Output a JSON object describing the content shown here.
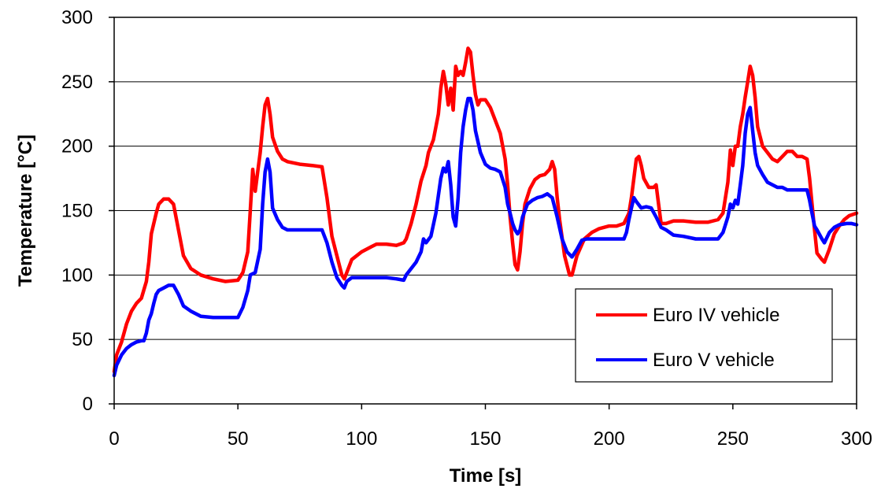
{
  "chart_data": {
    "type": "line",
    "title": "",
    "xlabel": "Time [s]",
    "ylabel": "Temperature [°C]",
    "xlim": [
      0,
      300
    ],
    "ylim": [
      0,
      300
    ],
    "x_ticks": [
      "0",
      "50",
      "100",
      "150",
      "200",
      "250",
      "300"
    ],
    "y_ticks": [
      "0",
      "50",
      "100",
      "150",
      "200",
      "250",
      "300"
    ],
    "grid": "horizontal",
    "legend_position": "bottom-right",
    "series": [
      {
        "name": "Euro IV vehicle",
        "color": "#ff0000",
        "points": [
          [
            0,
            25
          ],
          [
            1,
            38
          ],
          [
            3,
            48
          ],
          [
            5,
            62
          ],
          [
            7,
            72
          ],
          [
            9,
            78
          ],
          [
            11,
            82
          ],
          [
            13,
            95
          ],
          [
            14,
            110
          ],
          [
            15,
            132
          ],
          [
            17,
            148
          ],
          [
            18,
            155
          ],
          [
            20,
            159
          ],
          [
            22,
            159
          ],
          [
            24,
            155
          ],
          [
            26,
            135
          ],
          [
            28,
            115
          ],
          [
            31,
            105
          ],
          [
            35,
            100
          ],
          [
            40,
            97
          ],
          [
            45,
            95
          ],
          [
            50,
            96
          ],
          [
            52,
            102
          ],
          [
            54,
            118
          ],
          [
            55,
            150
          ],
          [
            56,
            182
          ],
          [
            57,
            165
          ],
          [
            58,
            180
          ],
          [
            59,
            195
          ],
          [
            60,
            215
          ],
          [
            61,
            232
          ],
          [
            62,
            237
          ],
          [
            63,
            225
          ],
          [
            64,
            207
          ],
          [
            66,
            196
          ],
          [
            68,
            190
          ],
          [
            70,
            188
          ],
          [
            75,
            186
          ],
          [
            80,
            185
          ],
          [
            84,
            184
          ],
          [
            86,
            160
          ],
          [
            88,
            130
          ],
          [
            90,
            115
          ],
          [
            92,
            100
          ],
          [
            93,
            97
          ],
          [
            94,
            102
          ],
          [
            96,
            112
          ],
          [
            100,
            118
          ],
          [
            104,
            122
          ],
          [
            106,
            124
          ],
          [
            110,
            124
          ],
          [
            114,
            123
          ],
          [
            117,
            125
          ],
          [
            118,
            128
          ],
          [
            120,
            140
          ],
          [
            122,
            155
          ],
          [
            124,
            173
          ],
          [
            126,
            185
          ],
          [
            127,
            195
          ],
          [
            129,
            205
          ],
          [
            131,
            225
          ],
          [
            132,
            245
          ],
          [
            133,
            258
          ],
          [
            134,
            248
          ],
          [
            135,
            232
          ],
          [
            136,
            245
          ],
          [
            137,
            228
          ],
          [
            138,
            262
          ],
          [
            139,
            255
          ],
          [
            140,
            258
          ],
          [
            141,
            255
          ],
          [
            142,
            265
          ],
          [
            143,
            276
          ],
          [
            144,
            273
          ],
          [
            145,
            255
          ],
          [
            146,
            240
          ],
          [
            147,
            232
          ],
          [
            148,
            236
          ],
          [
            150,
            236
          ],
          [
            152,
            230
          ],
          [
            154,
            220
          ],
          [
            156,
            210
          ],
          [
            158,
            190
          ],
          [
            159,
            170
          ],
          [
            160,
            145
          ],
          [
            161,
            125
          ],
          [
            162,
            108
          ],
          [
            163,
            104
          ],
          [
            164,
            118
          ],
          [
            165,
            140
          ],
          [
            166,
            155
          ],
          [
            168,
            167
          ],
          [
            170,
            174
          ],
          [
            172,
            177
          ],
          [
            174,
            178
          ],
          [
            176,
            182
          ],
          [
            177,
            188
          ],
          [
            178,
            182
          ],
          [
            179,
            160
          ],
          [
            180,
            143
          ],
          [
            182,
            115
          ],
          [
            184,
            100
          ],
          [
            185,
            100
          ],
          [
            187,
            115
          ],
          [
            190,
            128
          ],
          [
            193,
            133
          ],
          [
            196,
            136
          ],
          [
            200,
            138
          ],
          [
            203,
            138
          ],
          [
            206,
            140
          ],
          [
            208,
            148
          ],
          [
            209,
            160
          ],
          [
            210,
            175
          ],
          [
            211,
            190
          ],
          [
            212,
            192
          ],
          [
            213,
            185
          ],
          [
            214,
            175
          ],
          [
            216,
            168
          ],
          [
            218,
            168
          ],
          [
            219,
            170
          ],
          [
            220,
            155
          ],
          [
            221,
            140
          ],
          [
            223,
            140
          ],
          [
            226,
            142
          ],
          [
            230,
            142
          ],
          [
            235,
            141
          ],
          [
            240,
            141
          ],
          [
            244,
            143
          ],
          [
            246,
            148
          ],
          [
            248,
            172
          ],
          [
            249,
            197
          ],
          [
            250,
            185
          ],
          [
            251,
            200
          ],
          [
            252,
            200
          ],
          [
            253,
            215
          ],
          [
            254,
            225
          ],
          [
            255,
            238
          ],
          [
            256,
            250
          ],
          [
            257,
            262
          ],
          [
            258,
            255
          ],
          [
            259,
            238
          ],
          [
            260,
            215
          ],
          [
            262,
            200
          ],
          [
            264,
            195
          ],
          [
            266,
            190
          ],
          [
            268,
            188
          ],
          [
            270,
            192
          ],
          [
            272,
            196
          ],
          [
            274,
            196
          ],
          [
            276,
            192
          ],
          [
            278,
            192
          ],
          [
            280,
            190
          ],
          [
            281,
            175
          ],
          [
            282,
            155
          ],
          [
            283,
            135
          ],
          [
            284,
            117
          ],
          [
            286,
            112
          ],
          [
            287,
            110
          ],
          [
            289,
            120
          ],
          [
            291,
            132
          ],
          [
            293,
            138
          ],
          [
            295,
            143
          ],
          [
            297,
            146
          ],
          [
            300,
            148
          ]
        ]
      },
      {
        "name": "Euro V vehicle",
        "color": "#0000ff",
        "points": [
          [
            0,
            22
          ],
          [
            1,
            30
          ],
          [
            3,
            38
          ],
          [
            5,
            43
          ],
          [
            7,
            46
          ],
          [
            9,
            48
          ],
          [
            11,
            49
          ],
          [
            12,
            49
          ],
          [
            13,
            55
          ],
          [
            14,
            65
          ],
          [
            15,
            70
          ],
          [
            16,
            78
          ],
          [
            17,
            85
          ],
          [
            18,
            88
          ],
          [
            20,
            90
          ],
          [
            22,
            92
          ],
          [
            24,
            92
          ],
          [
            26,
            85
          ],
          [
            28,
            76
          ],
          [
            31,
            72
          ],
          [
            35,
            68
          ],
          [
            40,
            67
          ],
          [
            45,
            67
          ],
          [
            50,
            67
          ],
          [
            52,
            75
          ],
          [
            54,
            88
          ],
          [
            55,
            100
          ],
          [
            57,
            102
          ],
          [
            59,
            120
          ],
          [
            60,
            155
          ],
          [
            61,
            180
          ],
          [
            62,
            190
          ],
          [
            63,
            180
          ],
          [
            64,
            152
          ],
          [
            66,
            143
          ],
          [
            68,
            137
          ],
          [
            70,
            135
          ],
          [
            75,
            135
          ],
          [
            80,
            135
          ],
          [
            84,
            135
          ],
          [
            86,
            125
          ],
          [
            88,
            110
          ],
          [
            90,
            98
          ],
          [
            92,
            92
          ],
          [
            93,
            90
          ],
          [
            94,
            95
          ],
          [
            96,
            98
          ],
          [
            100,
            98
          ],
          [
            105,
            98
          ],
          [
            110,
            98
          ],
          [
            114,
            97
          ],
          [
            117,
            96
          ],
          [
            118,
            100
          ],
          [
            120,
            105
          ],
          [
            122,
            110
          ],
          [
            124,
            118
          ],
          [
            125,
            128
          ],
          [
            126,
            125
          ],
          [
            128,
            130
          ],
          [
            130,
            148
          ],
          [
            132,
            175
          ],
          [
            133,
            183
          ],
          [
            134,
            180
          ],
          [
            135,
            188
          ],
          [
            136,
            170
          ],
          [
            137,
            145
          ],
          [
            138,
            138
          ],
          [
            139,
            160
          ],
          [
            140,
            195
          ],
          [
            141,
            215
          ],
          [
            142,
            228
          ],
          [
            143,
            237
          ],
          [
            144,
            237
          ],
          [
            145,
            228
          ],
          [
            146,
            212
          ],
          [
            148,
            195
          ],
          [
            150,
            186
          ],
          [
            152,
            183
          ],
          [
            154,
            182
          ],
          [
            156,
            180
          ],
          [
            158,
            168
          ],
          [
            159,
            155
          ],
          [
            160,
            148
          ],
          [
            161,
            140
          ],
          [
            162,
            135
          ],
          [
            163,
            132
          ],
          [
            164,
            135
          ],
          [
            165,
            145
          ],
          [
            167,
            155
          ],
          [
            169,
            158
          ],
          [
            171,
            160
          ],
          [
            173,
            161
          ],
          [
            175,
            163
          ],
          [
            177,
            160
          ],
          [
            179,
            145
          ],
          [
            181,
            128
          ],
          [
            183,
            118
          ],
          [
            185,
            114
          ],
          [
            187,
            120
          ],
          [
            189,
            127
          ],
          [
            191,
            128
          ],
          [
            196,
            128
          ],
          [
            200,
            128
          ],
          [
            204,
            128
          ],
          [
            206,
            128
          ],
          [
            207,
            133
          ],
          [
            208,
            143
          ],
          [
            209,
            152
          ],
          [
            210,
            160
          ],
          [
            211,
            157
          ],
          [
            213,
            152
          ],
          [
            215,
            153
          ],
          [
            217,
            152
          ],
          [
            219,
            145
          ],
          [
            221,
            137
          ],
          [
            223,
            135
          ],
          [
            226,
            131
          ],
          [
            230,
            130
          ],
          [
            235,
            128
          ],
          [
            240,
            128
          ],
          [
            244,
            128
          ],
          [
            246,
            133
          ],
          [
            248,
            145
          ],
          [
            249,
            155
          ],
          [
            250,
            152
          ],
          [
            251,
            158
          ],
          [
            252,
            155
          ],
          [
            253,
            170
          ],
          [
            254,
            185
          ],
          [
            255,
            210
          ],
          [
            256,
            225
          ],
          [
            257,
            230
          ],
          [
            258,
            212
          ],
          [
            259,
            195
          ],
          [
            260,
            185
          ],
          [
            262,
            178
          ],
          [
            264,
            172
          ],
          [
            266,
            170
          ],
          [
            268,
            168
          ],
          [
            270,
            168
          ],
          [
            272,
            166
          ],
          [
            276,
            166
          ],
          [
            280,
            166
          ],
          [
            281,
            158
          ],
          [
            282,
            148
          ],
          [
            283,
            138
          ],
          [
            284,
            135
          ],
          [
            286,
            128
          ],
          [
            287,
            125
          ],
          [
            289,
            133
          ],
          [
            291,
            137
          ],
          [
            293,
            139
          ],
          [
            296,
            140
          ],
          [
            298,
            140
          ],
          [
            300,
            139
          ]
        ]
      }
    ]
  }
}
